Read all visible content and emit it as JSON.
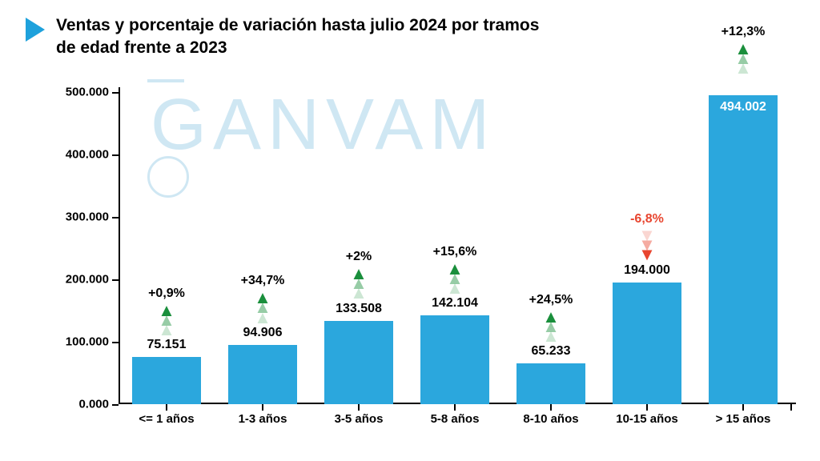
{
  "title": "Ventas y porcentaje de variación hasta julio 2024 por tramos de edad frente a 2023",
  "title_fontsize": 21,
  "title_color": "#000000",
  "triangle_color": "#1ea1dc",
  "triangle_size": 30,
  "watermark_text": "GANVAM",
  "watermark_color": "#cfe7f3",
  "chart": {
    "type": "bar",
    "background_color": "#ffffff",
    "axis_color": "#000000",
    "bar_color": "#2ba7dd",
    "bar_width_ratio": 0.72,
    "value_fontsize": 16,
    "x_label_fontsize": 15,
    "y_label_fontsize": 15,
    "pct_fontsize": 16,
    "up_arrow_color": "#1a8f3c",
    "down_arrow_color": "#e8452f",
    "ylim": [
      0,
      500000
    ],
    "ytick_step": 100000,
    "y_tick_labels": [
      "0.000",
      "100.000",
      "200.000",
      "300.000",
      "400.000",
      "500.000"
    ],
    "categories": [
      "<= 1 años",
      "1-3 años",
      "3-5 años",
      "5-8 años",
      "8-10 años",
      "10-15 años",
      "> 15 años"
    ],
    "values": [
      75151,
      94906,
      133508,
      142104,
      65233,
      194000,
      494002
    ],
    "value_labels": [
      "75.151",
      "94.906",
      "133.508",
      "142.104",
      "65.233",
      "194.000",
      "494.002"
    ],
    "value_label_placement": [
      "above",
      "above",
      "above",
      "above",
      "above",
      "above",
      "inside"
    ],
    "pct_labels": [
      "+0,9%",
      "+34,7%",
      "+2%",
      "+15,6%",
      "+24,5%",
      "-6,8%",
      "+12,3%"
    ],
    "pct_direction": [
      "up",
      "up",
      "up",
      "up",
      "up",
      "down",
      "up"
    ]
  }
}
